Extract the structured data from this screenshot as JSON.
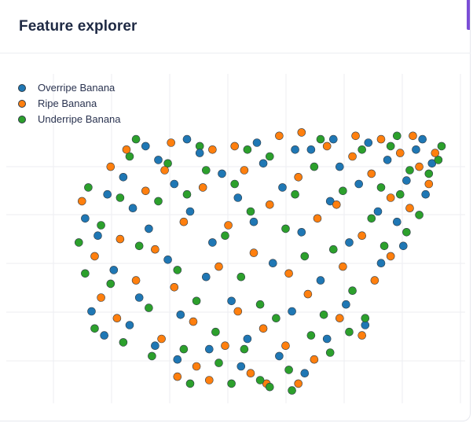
{
  "panel": {
    "title": "Feature explorer"
  },
  "colors": {
    "overripe": "#1f77b4",
    "ripe": "#ff7f0e",
    "underripe": "#2ca02c",
    "marker_outline": "#2f3b45",
    "grid": "#eceef2",
    "accent": "#7b4ed6"
  },
  "chart_data": {
    "type": "scatter",
    "title": "",
    "xlabel": "",
    "ylabel": "",
    "grid": true,
    "legend_position": "top-left",
    "x_range": [
      -6.5,
      5.5
    ],
    "y_range": [
      -4.2,
      3.5
    ],
    "series": [
      {
        "name": "Overripe Banana",
        "color": "#1f77b4",
        "points": [
          [
            -5.8,
            0.9
          ],
          [
            -5.4,
            0.4
          ],
          [
            -5.1,
            1.6
          ],
          [
            -4.9,
            -0.6
          ],
          [
            -4.6,
            2.1
          ],
          [
            -4.3,
            1.2
          ],
          [
            -4.1,
            -1.4
          ],
          [
            -3.8,
            0.6
          ],
          [
            -3.5,
            2.6
          ],
          [
            -3.2,
            -0.3
          ],
          [
            -3.0,
            1.9
          ],
          [
            -2.8,
            -1.9
          ],
          [
            -2.5,
            1.1
          ],
          [
            -2.2,
            2.8
          ],
          [
            -2.0,
            -0.8
          ],
          [
            -1.8,
            0.2
          ],
          [
            -1.5,
            2.2
          ],
          [
            -1.2,
            -1.5
          ],
          [
            -1.0,
            1.5
          ],
          [
            -0.7,
            -2.6
          ],
          [
            -0.5,
            0.8
          ],
          [
            -0.2,
            2.5
          ],
          [
            0.1,
            -0.4
          ],
          [
            0.4,
            1.8
          ],
          [
            0.7,
            -1.8
          ],
          [
            1.0,
            0.5
          ],
          [
            1.3,
            2.9
          ],
          [
            1.6,
            -0.9
          ],
          [
            1.9,
            1.4
          ],
          [
            2.2,
            2.4
          ],
          [
            2.5,
            0.2
          ],
          [
            2.8,
            1.9
          ],
          [
            3.1,
            3.1
          ],
          [
            3.4,
            1.1
          ],
          [
            3.7,
            2.6
          ],
          [
            4.0,
            0.8
          ],
          [
            4.3,
            2.0
          ],
          [
            4.6,
            2.9
          ],
          [
            4.9,
            1.6
          ],
          [
            5.1,
            2.5
          ],
          [
            -4.4,
            -2.2
          ],
          [
            -3.6,
            -2.8
          ],
          [
            -2.9,
            -3.2
          ],
          [
            -1.9,
            -2.9
          ],
          [
            -0.9,
            -3.4
          ],
          [
            0.3,
            -3.1
          ],
          [
            1.1,
            -3.6
          ],
          [
            1.8,
            -2.6
          ],
          [
            2.4,
            -1.6
          ],
          [
            3.0,
            -2.2
          ],
          [
            -5.6,
            -1.8
          ],
          [
            -5.2,
            -2.5
          ],
          [
            3.5,
            -0.4
          ],
          [
            4.2,
            0.1
          ],
          [
            2.0,
            3.2
          ],
          [
            0.8,
            2.9
          ],
          [
            -0.4,
            3.1
          ],
          [
            -2.6,
            3.2
          ],
          [
            -3.9,
            3.0
          ],
          [
            4.8,
            3.2
          ]
        ]
      },
      {
        "name": "Ripe Banana",
        "color": "#ff7f0e",
        "points": [
          [
            -5.9,
            1.4
          ],
          [
            -5.5,
            -0.2
          ],
          [
            -5.0,
            2.4
          ],
          [
            -4.7,
            0.3
          ],
          [
            -4.2,
            -0.9
          ],
          [
            -3.9,
            1.7
          ],
          [
            -3.6,
            0.0
          ],
          [
            -3.3,
            2.3
          ],
          [
            -3.0,
            -1.1
          ],
          [
            -2.7,
            0.8
          ],
          [
            -2.4,
            -2.1
          ],
          [
            -2.1,
            1.8
          ],
          [
            -1.8,
            2.9
          ],
          [
            -1.6,
            -0.5
          ],
          [
            -1.3,
            0.7
          ],
          [
            -1.0,
            -1.8
          ],
          [
            -0.8,
            2.3
          ],
          [
            -0.5,
            -0.1
          ],
          [
            -0.2,
            -2.3
          ],
          [
            0.0,
            1.3
          ],
          [
            0.3,
            3.3
          ],
          [
            0.6,
            -0.7
          ],
          [
            0.9,
            2.1
          ],
          [
            1.2,
            -1.3
          ],
          [
            1.5,
            0.9
          ],
          [
            1.8,
            3.0
          ],
          [
            2.1,
            1.3
          ],
          [
            2.3,
            -0.5
          ],
          [
            2.6,
            2.7
          ],
          [
            2.9,
            0.4
          ],
          [
            3.2,
            2.2
          ],
          [
            3.5,
            3.2
          ],
          [
            3.8,
            1.5
          ],
          [
            4.1,
            2.8
          ],
          [
            4.4,
            1.2
          ],
          [
            4.7,
            2.4
          ],
          [
            5.0,
            1.9
          ],
          [
            -4.8,
            -2.0
          ],
          [
            -3.4,
            -2.6
          ],
          [
            -2.3,
            -3.4
          ],
          [
            -1.4,
            -2.8
          ],
          [
            -0.6,
            -3.6
          ],
          [
            0.5,
            -2.8
          ],
          [
            1.4,
            -3.2
          ],
          [
            2.2,
            -2.0
          ],
          [
            2.9,
            -2.5
          ],
          [
            -5.3,
            -1.4
          ],
          [
            3.3,
            -0.9
          ],
          [
            1.0,
            3.4
          ],
          [
            -1.1,
            3.0
          ],
          [
            -3.1,
            3.1
          ],
          [
            4.5,
            3.3
          ],
          [
            -0.1,
            -3.9
          ],
          [
            -1.9,
            -3.8
          ],
          [
            0.9,
            -3.9
          ],
          [
            3.8,
            -0.2
          ],
          [
            5.2,
            2.8
          ],
          [
            -4.5,
            2.9
          ],
          [
            2.7,
            3.3
          ],
          [
            -2.9,
            -3.7
          ]
        ]
      },
      {
        "name": "Underripe Banana",
        "color": "#2ca02c",
        "points": [
          [
            -6.0,
            0.2
          ],
          [
            -5.7,
            1.8
          ],
          [
            -5.3,
            0.7
          ],
          [
            -5.0,
            -1.0
          ],
          [
            -4.7,
            1.5
          ],
          [
            -4.4,
            2.7
          ],
          [
            -4.1,
            0.1
          ],
          [
            -3.8,
            -1.7
          ],
          [
            -3.5,
            1.4
          ],
          [
            -3.2,
            2.5
          ],
          [
            -2.9,
            -0.6
          ],
          [
            -2.6,
            1.6
          ],
          [
            -2.3,
            -1.5
          ],
          [
            -2.0,
            2.3
          ],
          [
            -1.7,
            -2.4
          ],
          [
            -1.4,
            0.4
          ],
          [
            -1.1,
            1.9
          ],
          [
            -0.9,
            -0.8
          ],
          [
            -0.6,
            1.1
          ],
          [
            -0.3,
            -1.6
          ],
          [
            0.0,
            2.7
          ],
          [
            0.2,
            -2.0
          ],
          [
            0.5,
            0.6
          ],
          [
            0.8,
            1.6
          ],
          [
            1.1,
            -0.2
          ],
          [
            1.4,
            2.4
          ],
          [
            1.7,
            -1.9
          ],
          [
            2.0,
            0.0
          ],
          [
            2.3,
            1.7
          ],
          [
            2.6,
            -1.2
          ],
          [
            2.9,
            2.9
          ],
          [
            3.2,
            0.9
          ],
          [
            3.5,
            1.8
          ],
          [
            3.8,
            3.0
          ],
          [
            4.1,
            1.6
          ],
          [
            4.4,
            2.3
          ],
          [
            4.7,
            1.0
          ],
          [
            5.0,
            2.2
          ],
          [
            5.3,
            2.6
          ],
          [
            -5.5,
            -2.3
          ],
          [
            -4.6,
            -2.7
          ],
          [
            -3.7,
            -3.1
          ],
          [
            -2.7,
            -2.9
          ],
          [
            -1.6,
            -3.3
          ],
          [
            -0.8,
            -2.9
          ],
          [
            -0.3,
            -3.8
          ],
          [
            0.6,
            -3.5
          ],
          [
            1.3,
            -2.5
          ],
          [
            1.9,
            -3.0
          ],
          [
            2.5,
            -2.4
          ],
          [
            3.0,
            -2.0
          ],
          [
            -5.8,
            -0.7
          ],
          [
            3.6,
            0.1
          ],
          [
            4.3,
            0.5
          ],
          [
            1.6,
            3.2
          ],
          [
            -0.7,
            2.9
          ],
          [
            -2.2,
            3.0
          ],
          [
            -4.2,
            3.2
          ],
          [
            -1.2,
            -3.9
          ],
          [
            0.0,
            -4.0
          ],
          [
            -2.5,
            -3.9
          ],
          [
            0.7,
            -4.1
          ],
          [
            4.0,
            3.3
          ],
          [
            5.4,
            3.0
          ]
        ]
      }
    ]
  }
}
